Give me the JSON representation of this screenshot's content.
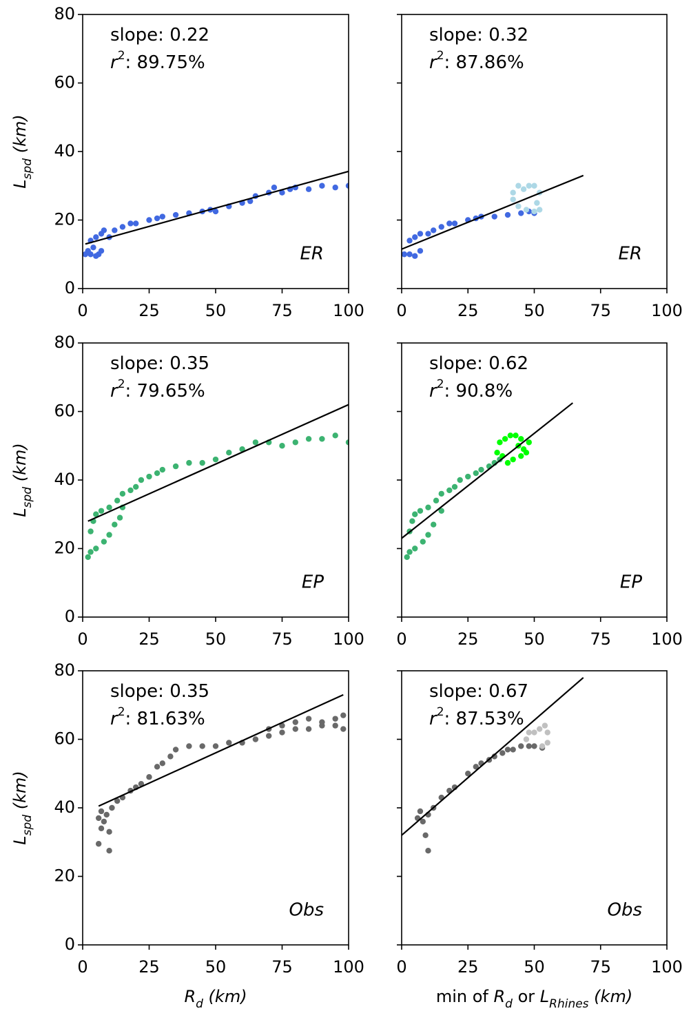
{
  "chart_data": [
    {
      "type": "scatter",
      "ylabel": [
        {
          "text": "L",
          "italic": true
        },
        {
          "text": "spd",
          "italic": true,
          "sub": true
        },
        {
          "text": " (km)",
          "italic": true
        }
      ],
      "xlim": [
        0,
        100
      ],
      "ylim": [
        0,
        80
      ],
      "xticks": [
        0,
        25,
        50,
        75,
        100
      ],
      "yticks": [
        0,
        20,
        40,
        60,
        80
      ],
      "ytick_labels": true,
      "annotations": [
        [
          {
            "text": "slope: 0.22"
          }
        ],
        [
          {
            "text": "r",
            "italic": true
          },
          {
            "text": "2",
            "sup": true
          },
          {
            "text": ": 89.75%"
          }
        ]
      ],
      "panel_label": "ER",
      "series": [
        {
          "type": "scatter",
          "color": "#4169e1",
          "x": [
            1,
            2,
            3,
            4,
            5,
            6,
            7,
            3,
            5,
            7,
            8,
            10,
            12,
            15,
            18,
            20,
            25,
            28,
            30,
            35,
            40,
            45,
            48,
            50,
            55,
            60,
            63,
            65,
            70,
            72,
            75,
            78,
            80,
            85,
            90,
            95,
            100
          ],
          "values": [
            10,
            11,
            10,
            12,
            9.5,
            10,
            11,
            14,
            15,
            16,
            17,
            15,
            17,
            18,
            19,
            19,
            20,
            20.5,
            21,
            21.5,
            22,
            22.5,
            23,
            22.5,
            24,
            25,
            25.5,
            27,
            28,
            29.5,
            28,
            29,
            29.5,
            29,
            30,
            29.5,
            30
          ]
        },
        {
          "type": "line",
          "color": "#000000",
          "x": [
            1,
            100
          ],
          "values": [
            13,
            34.2
          ]
        }
      ]
    },
    {
      "type": "scatter",
      "xlim": [
        0,
        100
      ],
      "ylim": [
        0,
        80
      ],
      "xticks": [
        0,
        25,
        50,
        75,
        100
      ],
      "yticks": [
        0,
        20,
        40,
        60,
        80
      ],
      "ytick_labels": false,
      "annotations": [
        [
          {
            "text": "slope: 0.32"
          }
        ],
        [
          {
            "text": "r",
            "italic": true
          },
          {
            "text": "2",
            "sup": true
          },
          {
            "text": ": 87.86%"
          }
        ]
      ],
      "panel_label": "ER",
      "series": [
        {
          "type": "scatter",
          "color": "#4169e1",
          "x": [
            1,
            3,
            5,
            7,
            3,
            5,
            7,
            10,
            12,
            15,
            18,
            20,
            25,
            28,
            30,
            35,
            40,
            45,
            48,
            50
          ],
          "values": [
            10,
            10,
            9.5,
            11,
            14,
            15,
            16,
            16,
            17,
            18,
            19,
            19,
            20,
            20.5,
            21,
            21,
            21.5,
            22,
            22.5,
            22
          ]
        },
        {
          "type": "scatter",
          "color": "#add8e6",
          "x": [
            42,
            44,
            46,
            48,
            50,
            52,
            51,
            52,
            50,
            47,
            44,
            42
          ],
          "values": [
            28,
            30,
            29,
            30,
            30,
            28,
            25,
            23,
            22.5,
            23,
            24,
            26
          ]
        },
        {
          "type": "line",
          "color": "#000000",
          "x": [
            0,
            68.5
          ],
          "values": [
            11.5,
            33
          ]
        }
      ]
    },
    {
      "type": "scatter",
      "ylabel": [
        {
          "text": "L",
          "italic": true
        },
        {
          "text": "spd",
          "italic": true,
          "sub": true
        },
        {
          "text": " (km)",
          "italic": true
        }
      ],
      "xlim": [
        0,
        100
      ],
      "ylim": [
        0,
        80
      ],
      "xticks": [
        0,
        25,
        50,
        75,
        100
      ],
      "yticks": [
        0,
        20,
        40,
        60,
        80
      ],
      "ytick_labels": true,
      "annotations": [
        [
          {
            "text": "slope: 0.35"
          }
        ],
        [
          {
            "text": "r",
            "italic": true
          },
          {
            "text": "2",
            "sup": true
          },
          {
            "text": ": 79.65%"
          }
        ]
      ],
      "panel_label": "EP",
      "series": [
        {
          "type": "scatter",
          "color": "#3cb371",
          "x": [
            2,
            3,
            5,
            8,
            10,
            12,
            14,
            15,
            3,
            4,
            5,
            7,
            10,
            13,
            15,
            18,
            20,
            22,
            25,
            28,
            30,
            35,
            40,
            45,
            50,
            55,
            60,
            65,
            70,
            75,
            80,
            85,
            90,
            95,
            100
          ],
          "values": [
            17.5,
            19,
            20,
            22,
            24,
            27,
            29,
            32,
            25,
            28,
            30,
            31,
            32,
            34,
            36,
            37,
            38,
            40,
            41,
            42,
            43,
            44,
            45,
            45,
            46,
            48,
            49,
            51,
            51,
            50,
            51,
            52,
            52,
            53,
            51
          ]
        },
        {
          "type": "line",
          "color": "#000000",
          "x": [
            2,
            100
          ],
          "values": [
            28,
            62
          ]
        }
      ]
    },
    {
      "type": "scatter",
      "xlim": [
        0,
        100
      ],
      "ylim": [
        0,
        80
      ],
      "xticks": [
        0,
        25,
        50,
        75,
        100
      ],
      "yticks": [
        0,
        20,
        40,
        60,
        80
      ],
      "ytick_labels": false,
      "annotations": [
        [
          {
            "text": "slope: 0.62"
          }
        ],
        [
          {
            "text": "r",
            "italic": true
          },
          {
            "text": "2",
            "sup": true
          },
          {
            "text": ": 90.8%"
          }
        ]
      ],
      "panel_label": "EP",
      "series": [
        {
          "type": "scatter",
          "color": "#3cb371",
          "x": [
            2,
            3,
            5,
            8,
            10,
            12,
            15,
            3,
            4,
            5,
            7,
            10,
            13,
            15,
            18,
            20,
            22,
            25,
            28,
            30,
            33,
            35,
            37
          ],
          "values": [
            17.5,
            19,
            20,
            22,
            24,
            27,
            31,
            25,
            28,
            30,
            31,
            32,
            34,
            36,
            37,
            38,
            40,
            41,
            42,
            43,
            44,
            45,
            46
          ]
        },
        {
          "type": "scatter",
          "color": "#00ff00",
          "x": [
            36,
            37,
            39,
            41,
            43,
            45,
            44,
            46,
            48,
            47,
            45,
            42,
            40,
            38
          ],
          "values": [
            48,
            51,
            52,
            53,
            53,
            52,
            50,
            49,
            51,
            48,
            47,
            46,
            45,
            47
          ]
        },
        {
          "type": "line",
          "color": "#000000",
          "x": [
            0,
            64.5
          ],
          "values": [
            23,
            62.5
          ]
        }
      ]
    },
    {
      "type": "scatter",
      "ylabel": [
        {
          "text": "L",
          "italic": true
        },
        {
          "text": "spd",
          "italic": true,
          "sub": true
        },
        {
          "text": " (km)",
          "italic": true
        }
      ],
      "xlabel": [
        {
          "text": "R",
          "italic": true
        },
        {
          "text": "d",
          "italic": true,
          "sub": true
        },
        {
          "text": " (km)",
          "italic": true
        }
      ],
      "xlim": [
        0,
        100
      ],
      "ylim": [
        0,
        80
      ],
      "xticks": [
        0,
        25,
        50,
        75,
        100
      ],
      "yticks": [
        0,
        20,
        40,
        60,
        80
      ],
      "ytick_labels": true,
      "annotations": [
        [
          {
            "text": "slope: 0.35"
          }
        ],
        [
          {
            "text": "r",
            "italic": true
          },
          {
            "text": "2",
            "sup": true
          },
          {
            "text": ": 81.63%"
          }
        ]
      ],
      "panel_label": "Obs",
      "series": [
        {
          "type": "scatter",
          "color": "#696969",
          "x": [
            6,
            7,
            6,
            7,
            8,
            9,
            10,
            10,
            11,
            13,
            15,
            18,
            20,
            22,
            25,
            28,
            30,
            33,
            35,
            40,
            45,
            50,
            55,
            60,
            65,
            70,
            75,
            80,
            85,
            90,
            95,
            98,
            70,
            75,
            80,
            85,
            90,
            95,
            98
          ],
          "values": [
            29.5,
            34,
            37,
            39,
            36,
            38,
            27.5,
            33,
            40,
            42,
            43,
            45,
            46,
            47,
            49,
            52,
            53,
            55,
            57,
            58,
            58,
            58,
            59,
            59,
            60,
            61,
            62,
            63,
            63,
            64,
            64,
            63,
            63,
            64,
            65,
            66,
            65,
            66,
            67
          ]
        },
        {
          "type": "line",
          "color": "#000000",
          "x": [
            6,
            98
          ],
          "values": [
            40.5,
            73
          ]
        }
      ]
    },
    {
      "type": "scatter",
      "xlabel": [
        {
          "text": "min of "
        },
        {
          "text": "R",
          "italic": true
        },
        {
          "text": "d",
          "italic": true,
          "sub": true
        },
        {
          "text": " or "
        },
        {
          "text": "L",
          "italic": true
        },
        {
          "text": "Rhines",
          "italic": true,
          "sub": true
        },
        {
          "text": " (km)",
          "italic": true
        }
      ],
      "xlim": [
        0,
        100
      ],
      "ylim": [
        0,
        80
      ],
      "xticks": [
        0,
        25,
        50,
        75,
        100
      ],
      "yticks": [
        0,
        20,
        40,
        60,
        80
      ],
      "ytick_labels": false,
      "annotations": [
        [
          {
            "text": "slope: 0.67"
          }
        ],
        [
          {
            "text": "r",
            "italic": true
          },
          {
            "text": "2",
            "sup": true
          },
          {
            "text": ": 87.53%"
          }
        ]
      ],
      "panel_label": "Obs",
      "series": [
        {
          "type": "scatter",
          "color": "#696969",
          "x": [
            6,
            7,
            8,
            9,
            10,
            10,
            12,
            15,
            18,
            20,
            25,
            28,
            30,
            33,
            35,
            38,
            40,
            42,
            45,
            48,
            50,
            53
          ],
          "values": [
            37,
            39,
            36,
            32,
            27.5,
            38,
            40,
            43,
            45,
            46,
            50,
            52,
            53,
            54,
            55,
            56,
            57,
            57,
            58,
            58,
            58,
            57.5
          ]
        },
        {
          "type": "scatter",
          "color": "#c0c0c0",
          "x": [
            47,
            48,
            50,
            52,
            54,
            55,
            55,
            53
          ],
          "values": [
            60,
            62,
            62,
            63,
            64,
            62,
            59,
            58
          ]
        },
        {
          "type": "line",
          "color": "#000000",
          "x": [
            0,
            68.5
          ],
          "values": [
            32,
            78
          ]
        }
      ]
    }
  ]
}
